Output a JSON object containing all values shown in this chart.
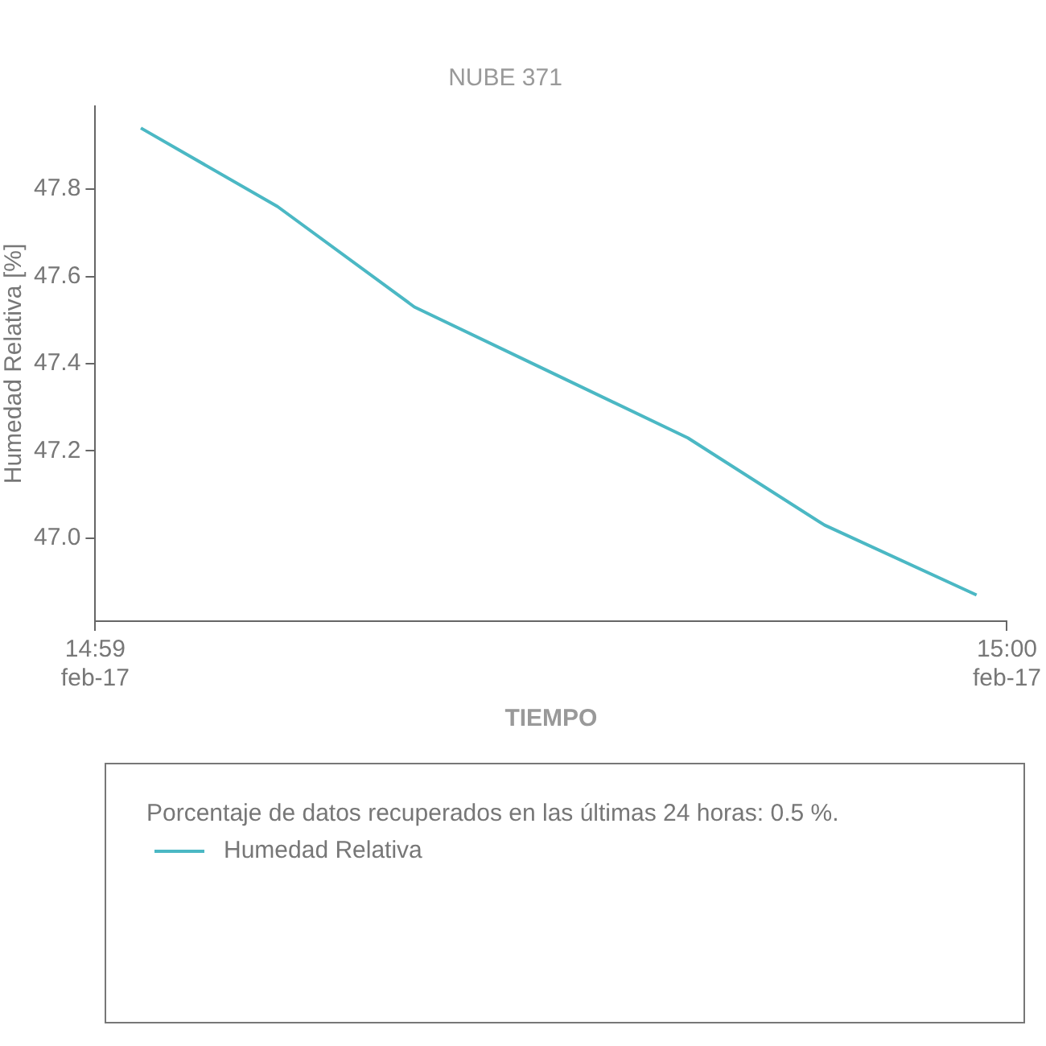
{
  "chart_data": {
    "type": "line",
    "title": "NUBE 371",
    "xlabel": "TIEMPO",
    "ylabel": "Humedad Relativa [%]",
    "x": [
      "--02-17T14:59:03",
      "--02-17T14:59:12",
      "--02-17T14:59:21",
      "--02-17T14:59:30",
      "--02-17T14:59:39",
      "--02-17T14:59:48",
      "--02-17T14:59:58"
    ],
    "series": [
      {
        "name": "Humedad Relativa",
        "color": "#4bb8c4",
        "values": [
          47.94,
          47.76,
          47.53,
          47.38,
          47.23,
          47.03,
          46.87
        ]
      }
    ],
    "xlim": [
      "--02-17T14:59",
      "--02-17T15:00"
    ],
    "xticks": [
      {
        "value": "--02-17T14:59",
        "label": "14:59\nfeb-17"
      },
      {
        "value": "--02-17T15:00",
        "label": "15:00\nfeb-17"
      }
    ],
    "ylim": [
      46.81,
      47.99
    ],
    "yticks": [
      {
        "value": 47.0,
        "label": "47.0"
      },
      {
        "value": 47.2,
        "label": "47.2"
      },
      {
        "value": 47.4,
        "label": "47.4"
      },
      {
        "value": 47.6,
        "label": "47.6"
      },
      {
        "value": 47.8,
        "label": "47.8"
      }
    ],
    "annotations": [
      "Porcentaje de datos recuperados en las últimas 24 horas: 0.5 %."
    ],
    "grid": false,
    "legend": "bottom",
    "marker": "none",
    "line_style": "solid"
  }
}
